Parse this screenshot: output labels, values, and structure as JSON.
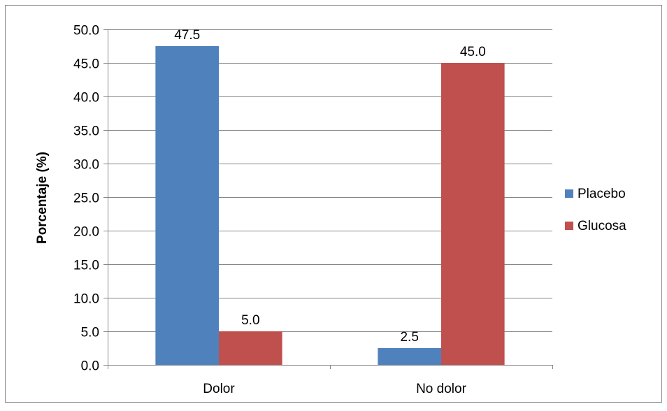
{
  "chart_data": {
    "type": "bar",
    "title": "",
    "xlabel": "",
    "ylabel": "Porcentaje (%)",
    "categories": [
      "Dolor",
      "No dolor"
    ],
    "series": [
      {
        "name": "Placebo",
        "values": [
          47.5,
          2.5
        ],
        "color": "#4F81BD"
      },
      {
        "name": "Glucosa",
        "values": [
          5.0,
          45.0
        ],
        "color": "#C0504D"
      }
    ],
    "ylim": [
      0,
      50
    ],
    "yticks": [
      "0.0",
      "5.0",
      "10.0",
      "15.0",
      "20.0",
      "25.0",
      "30.0",
      "35.0",
      "40.0",
      "45.0",
      "50.0"
    ],
    "data_labels": [
      [
        "47.5",
        "2.5"
      ],
      [
        "5.0",
        "45.0"
      ]
    ],
    "grid": true,
    "legend_position": "right"
  }
}
